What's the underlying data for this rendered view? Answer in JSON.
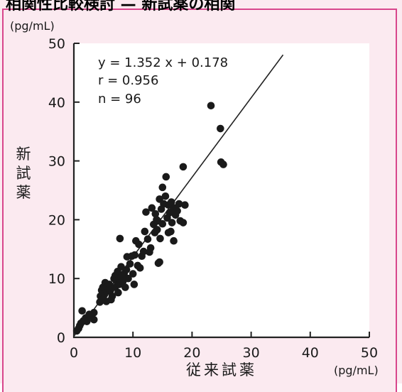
{
  "header": {
    "title_fragment": "相関性比較検討 — 新試薬の相関"
  },
  "chart_data": {
    "type": "scatter",
    "title": "",
    "xlabel": "従来試薬",
    "ylabel": "新試薬",
    "x_unit": "(pg/mL)",
    "y_unit": "(pg/mL)",
    "xlim": [
      0,
      50
    ],
    "ylim": [
      0,
      50
    ],
    "xticks": [
      0,
      10,
      20,
      30,
      40,
      50
    ],
    "yticks": [
      0,
      10,
      20,
      30,
      40,
      50
    ],
    "grid": false,
    "annotations": [
      "y = 1.352 x + 0.178",
      "r = 0.956",
      "n = 96"
    ],
    "regression": {
      "slope": 1.352,
      "intercept": 0.178,
      "x_range": [
        0,
        35.4
      ]
    },
    "point_color": "#1a1a1a",
    "points": [
      [
        0.5,
        1.1
      ],
      [
        0.8,
        1.5
      ],
      [
        1.0,
        2.0
      ],
      [
        1.2,
        2.4
      ],
      [
        1.6,
        2.8
      ],
      [
        1.4,
        4.5
      ],
      [
        2.0,
        3.3
      ],
      [
        2.2,
        2.7
      ],
      [
        2.6,
        3.9
      ],
      [
        3.0,
        3.6
      ],
      [
        3.4,
        4.2
      ],
      [
        3.4,
        3.0
      ],
      [
        4.4,
        6.0
      ],
      [
        4.5,
        7.0
      ],
      [
        4.7,
        8.0
      ],
      [
        4.9,
        8.5
      ],
      [
        5.0,
        6.5
      ],
      [
        5.2,
        7.3
      ],
      [
        5.3,
        9.3
      ],
      [
        5.5,
        6.1
      ],
      [
        5.6,
        7.8
      ],
      [
        5.7,
        8.6
      ],
      [
        6.0,
        9.0
      ],
      [
        6.2,
        8.0
      ],
      [
        6.3,
        6.4
      ],
      [
        6.5,
        7.0
      ],
      [
        6.8,
        10.0
      ],
      [
        7.0,
        10.5
      ],
      [
        7.0,
        8.5
      ],
      [
        7.2,
        9.6
      ],
      [
        7.4,
        11.2
      ],
      [
        7.5,
        7.6
      ],
      [
        7.7,
        9.0
      ],
      [
        7.8,
        16.8
      ],
      [
        8.0,
        10.3
      ],
      [
        8.0,
        12.0
      ],
      [
        8.3,
        9.5
      ],
      [
        8.5,
        10.8
      ],
      [
        8.7,
        8.5
      ],
      [
        8.9,
        11.5
      ],
      [
        9.0,
        13.7
      ],
      [
        9.2,
        10.0
      ],
      [
        9.5,
        12.5
      ],
      [
        9.8,
        13.8
      ],
      [
        10.0,
        10.8
      ],
      [
        10.2,
        9.0
      ],
      [
        10.3,
        14.0
      ],
      [
        10.5,
        16.4
      ],
      [
        10.8,
        12.2
      ],
      [
        11.0,
        15.8
      ],
      [
        11.2,
        11.8
      ],
      [
        11.5,
        13.8
      ],
      [
        11.8,
        14.6
      ],
      [
        12.0,
        18.0
      ],
      [
        12.2,
        21.3
      ],
      [
        12.5,
        16.7
      ],
      [
        12.8,
        14.5
      ],
      [
        13.0,
        15.2
      ],
      [
        13.2,
        22.0
      ],
      [
        13.5,
        19.2
      ],
      [
        13.7,
        17.8
      ],
      [
        13.8,
        21.0
      ],
      [
        14.0,
        20.0
      ],
      [
        14.1,
        18.3
      ],
      [
        14.2,
        19.8
      ],
      [
        14.3,
        12.6
      ],
      [
        14.5,
        12.8
      ],
      [
        14.5,
        23.5
      ],
      [
        14.6,
        16.8
      ],
      [
        14.8,
        21.8
      ],
      [
        15.0,
        25.5
      ],
      [
        15.0,
        19.3
      ],
      [
        15.2,
        22.7
      ],
      [
        15.5,
        24.0
      ],
      [
        15.6,
        27.3
      ],
      [
        15.8,
        20.3
      ],
      [
        16.0,
        17.8
      ],
      [
        16.0,
        22.5
      ],
      [
        16.2,
        21.2
      ],
      [
        16.4,
        18.0
      ],
      [
        16.5,
        23.0
      ],
      [
        16.6,
        19.5
      ],
      [
        16.8,
        21.6
      ],
      [
        17.0,
        22.0
      ],
      [
        17.2,
        20.8
      ],
      [
        17.5,
        21.5
      ],
      [
        17.8,
        22.7
      ],
      [
        18.0,
        19.8
      ],
      [
        18.5,
        19.5
      ],
      [
        18.5,
        29.0
      ],
      [
        18.8,
        22.5
      ],
      [
        23.2,
        39.4
      ],
      [
        24.8,
        35.5
      ],
      [
        24.9,
        29.8
      ],
      [
        25.3,
        29.4
      ],
      [
        16.9,
        16.4
      ]
    ]
  }
}
